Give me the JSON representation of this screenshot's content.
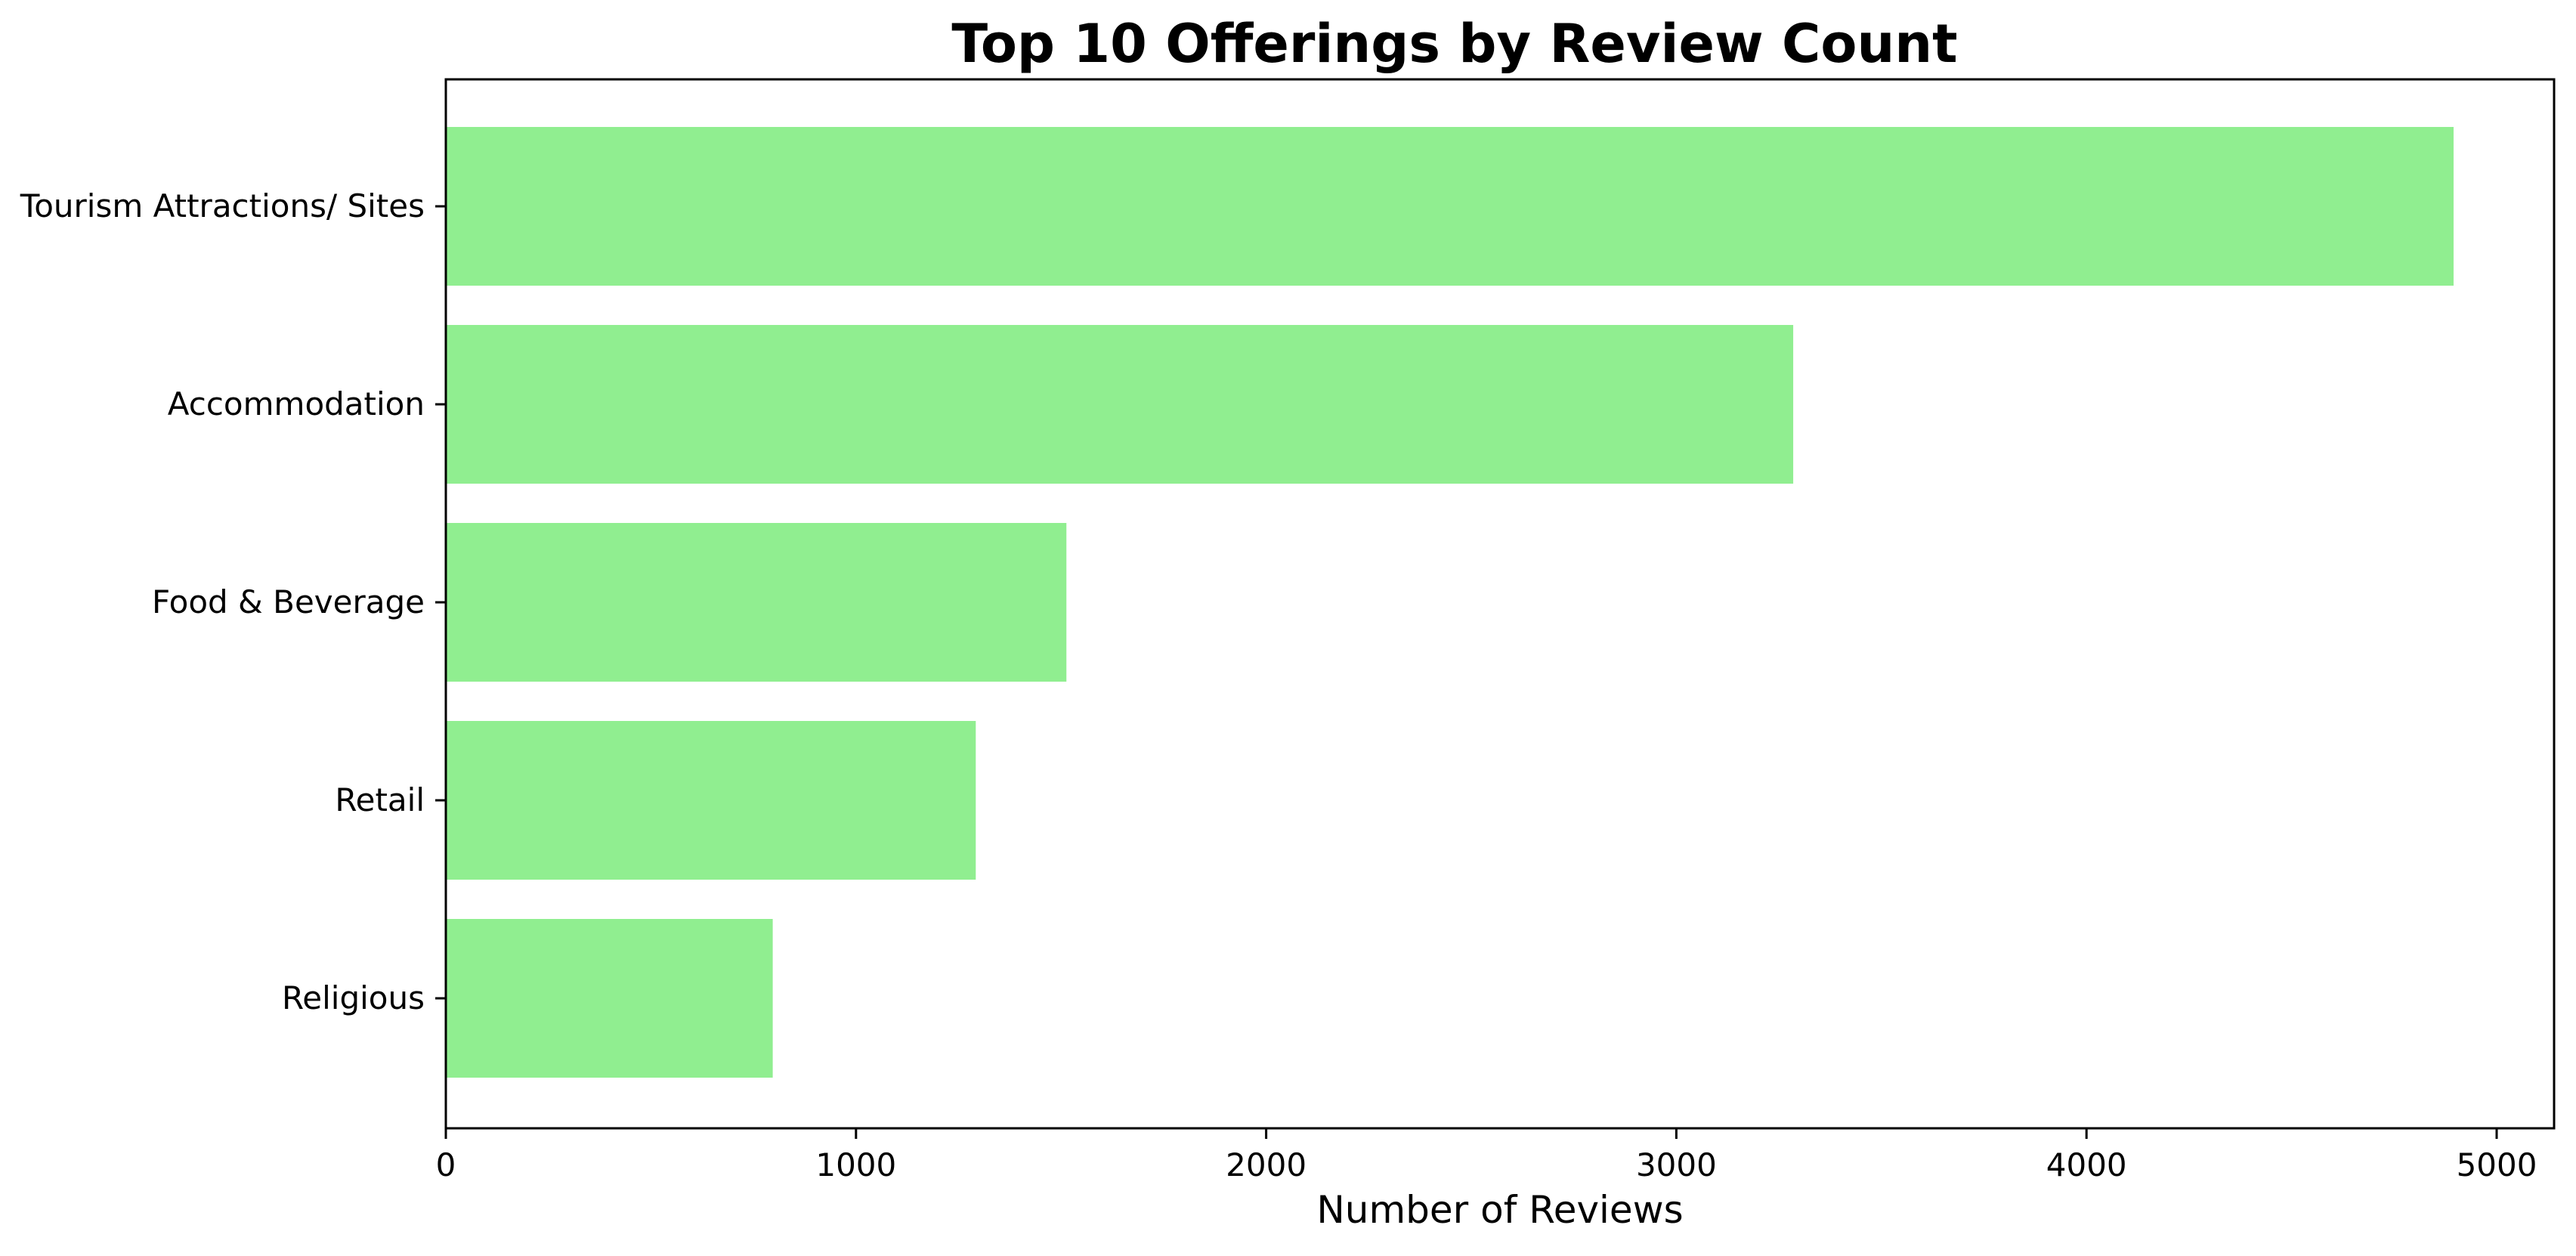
{
  "chart_data": {
    "type": "bar",
    "orientation": "horizontal",
    "title": "Top 10 Offerings by Review Count",
    "xlabel": "Number of Reviews",
    "ylabel": "",
    "categories": [
      "Tourism Attractions/ Sites",
      "Accommodation",
      "Food & Beverage",
      "Retail",
      "Religious"
    ],
    "values": [
      4895,
      3285,
      1513,
      1292,
      797
    ],
    "xlim": [
      0,
      5140
    ],
    "xticks": [
      0,
      1000,
      2000,
      3000,
      4000,
      5000
    ],
    "xtick_labels": [
      "0",
      "1000",
      "2000",
      "3000",
      "4000",
      "5000"
    ],
    "bar_color": "#90ee90",
    "grid": false,
    "legend": "none"
  }
}
